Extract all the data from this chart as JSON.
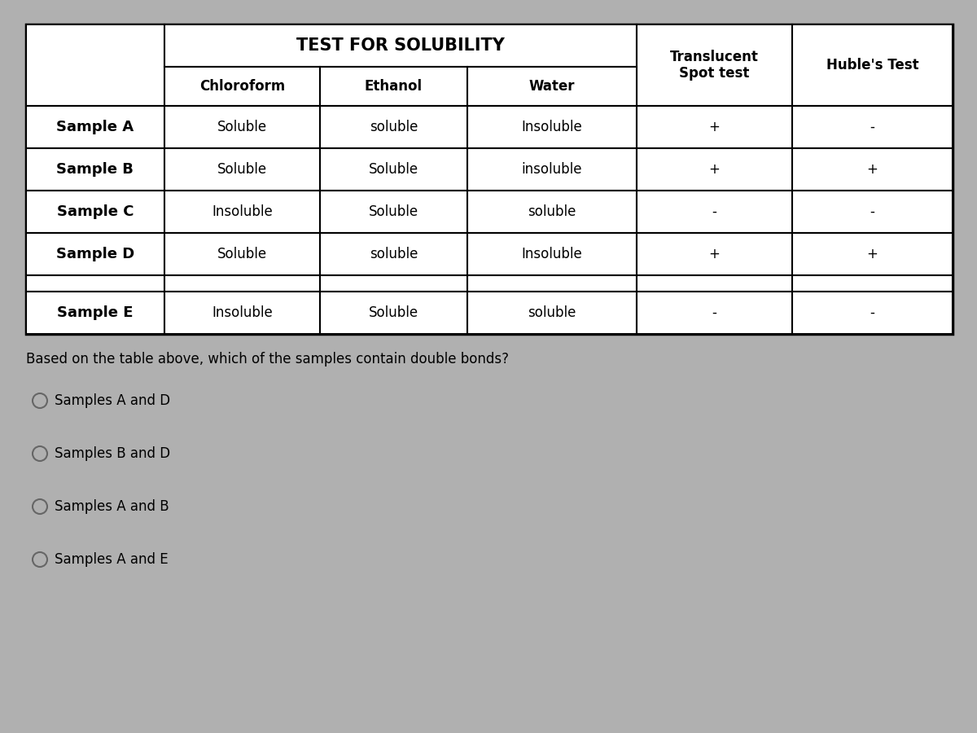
{
  "bg_color": "#b0b0b0",
  "title": "TEST FOR SOLUBILITY",
  "col_headers_row1": [
    "Chloroform",
    "Ethanol",
    "Water"
  ],
  "col_header_translucent": "Translucent\nSpot test",
  "col_header_huble": "Huble's Test",
  "row_labels": [
    "Sample A",
    "Sample B",
    "Sample C",
    "Sample D",
    "",
    "Sample E"
  ],
  "table_data": [
    [
      "Soluble",
      "soluble",
      "Insoluble",
      "+",
      "-"
    ],
    [
      "Soluble",
      "Soluble",
      "insoluble",
      "+",
      "+"
    ],
    [
      "Insoluble",
      "Soluble",
      "soluble",
      "-",
      "-"
    ],
    [
      "Soluble",
      "soluble",
      "Insoluble",
      "+",
      "+"
    ],
    [
      "",
      "",
      "",
      "",
      ""
    ],
    [
      "Insoluble",
      "Soluble",
      "soluble",
      "-",
      "-"
    ]
  ],
  "question": "Based on the table above, which of the samples contain double bonds?",
  "choices": [
    "Samples A and D",
    "Samples B and D",
    "Samples A and B",
    "Samples A and E"
  ],
  "title_fontsize": 15,
  "header_fontsize": 12,
  "cell_fontsize": 12,
  "label_fontsize": 13,
  "question_fontsize": 12,
  "choice_fontsize": 12
}
